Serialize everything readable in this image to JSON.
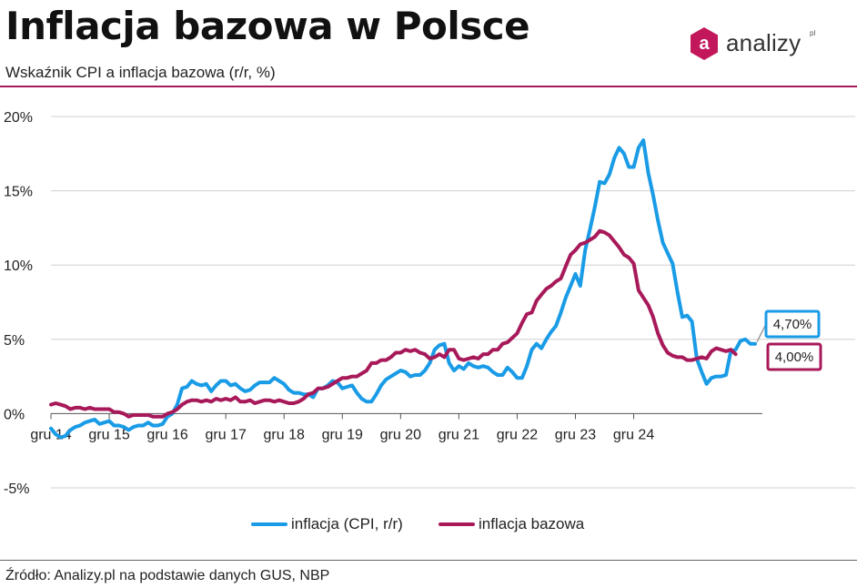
{
  "header": {
    "title": "Inflacja bazowa w Polsce",
    "subtitle": "Wskaźnik CPI a inflacja bazowa (r/r, %)"
  },
  "brand": {
    "name": "analizy",
    "sup": "pl",
    "mark_letter": "a",
    "color": "#c2185b"
  },
  "footer": {
    "source": "Źródło: Analizy.pl na podstawie danych GUS, NBP"
  },
  "colors": {
    "cpi": "#1a9be6",
    "core": "#a8195a",
    "grid": "#d0d0d0"
  },
  "chart_data": {
    "type": "line",
    "title": "",
    "x_start": "2014-12",
    "x_end": "2024-12",
    "x_ticks": [
      "gru 14",
      "gru 15",
      "gru 16",
      "gru 17",
      "gru 18",
      "gru 19",
      "gru 20",
      "gru 21",
      "gru 22",
      "gru 23",
      "gru 24"
    ],
    "ylim": [
      -5,
      20
    ],
    "y_ticks": [
      {
        "value": 20,
        "label": "20%"
      },
      {
        "value": 15,
        "label": "15%"
      },
      {
        "value": 10,
        "label": "10%"
      },
      {
        "value": 5,
        "label": "5%"
      },
      {
        "value": 0,
        "label": "0%"
      },
      {
        "value": -5,
        "label": "-5%"
      }
    ],
    "grid": true,
    "legend_position": "bottom-center",
    "series": [
      {
        "name": "inflacja (CPI, r/r)",
        "key": "cpi",
        "values": [
          -1.0,
          -1.4,
          -1.6,
          -1.5,
          -1.1,
          -0.9,
          -0.8,
          -0.6,
          -0.5,
          -0.4,
          -0.7,
          -0.6,
          -0.5,
          -0.8,
          -0.8,
          -0.9,
          -1.1,
          -0.9,
          -0.8,
          -0.8,
          -0.6,
          -0.8,
          -0.8,
          -0.7,
          -0.2,
          0.0,
          0.6,
          1.7,
          1.8,
          2.2,
          2.0,
          1.9,
          2.0,
          1.5,
          1.9,
          2.2,
          2.2,
          1.9,
          2.0,
          1.7,
          1.5,
          1.6,
          1.9,
          2.1,
          2.1,
          2.1,
          2.4,
          2.2,
          2.0,
          1.6,
          1.4,
          1.4,
          1.3,
          1.3,
          1.1,
          1.7,
          1.7,
          1.9,
          2.2,
          2.1,
          1.7,
          1.8,
          1.9,
          1.4,
          1.0,
          0.8,
          0.8,
          1.3,
          1.9,
          2.3,
          2.5,
          2.7,
          2.9,
          2.8,
          2.5,
          2.6,
          2.6,
          2.9,
          3.4,
          4.3,
          4.6,
          4.7,
          3.4,
          2.9,
          3.2,
          3.0,
          3.4,
          3.2,
          3.1,
          3.2,
          3.1,
          2.8,
          2.6,
          2.6,
          3.1,
          2.8,
          2.4,
          2.4,
          3.2,
          4.3,
          4.7,
          4.4,
          5.0,
          5.5,
          5.9,
          6.8,
          7.8,
          8.6,
          9.4,
          8.6,
          11.0,
          12.4,
          13.9,
          15.6,
          15.5,
          16.1,
          17.2,
          17.9,
          17.5,
          16.6,
          16.6,
          17.9,
          18.4,
          16.2,
          14.7,
          13.0,
          11.5,
          10.8,
          10.1,
          8.2,
          6.5,
          6.6,
          6.2,
          3.7,
          2.8,
          2.0,
          2.4,
          2.5,
          2.5,
          2.6,
          4.2,
          4.3,
          4.9,
          5.0,
          4.7,
          4.7
        ],
        "last_label": "4,70%"
      },
      {
        "name": "inflacja bazowa",
        "key": "core",
        "values": [
          0.6,
          0.7,
          0.6,
          0.5,
          0.3,
          0.4,
          0.4,
          0.3,
          0.4,
          0.3,
          0.3,
          0.3,
          0.3,
          0.1,
          0.1,
          0.0,
          -0.2,
          -0.1,
          -0.1,
          -0.1,
          -0.1,
          -0.2,
          -0.2,
          -0.2,
          0.0,
          0.1,
          0.3,
          0.6,
          0.8,
          0.9,
          0.9,
          0.8,
          0.9,
          0.8,
          1.0,
          0.9,
          1.0,
          0.9,
          1.1,
          0.8,
          0.8,
          0.9,
          0.7,
          0.8,
          0.9,
          0.9,
          0.8,
          0.9,
          0.8,
          0.7,
          0.7,
          0.8,
          1.0,
          1.3,
          1.4,
          1.7,
          1.7,
          1.8,
          2.0,
          2.2,
          2.4,
          2.4,
          2.5,
          2.5,
          2.7,
          2.9,
          3.4,
          3.4,
          3.6,
          3.6,
          3.8,
          4.1,
          4.1,
          4.3,
          4.2,
          4.3,
          4.1,
          4.0,
          3.7,
          3.8,
          4.0,
          3.8,
          4.3,
          4.3,
          3.7,
          3.6,
          3.7,
          3.8,
          3.7,
          4.0,
          4.0,
          4.3,
          4.3,
          4.7,
          4.8,
          5.1,
          5.4,
          6.1,
          6.7,
          6.8,
          7.6,
          8.0,
          8.4,
          8.6,
          8.9,
          9.1,
          9.9,
          10.7,
          11.0,
          11.4,
          11.5,
          11.7,
          11.9,
          12.3,
          12.2,
          12.0,
          11.6,
          11.2,
          10.7,
          10.5,
          10.1,
          8.3,
          7.8,
          7.3,
          6.5,
          5.4,
          4.6,
          4.1,
          3.9,
          3.8,
          3.8,
          3.6,
          3.6,
          3.7,
          3.8,
          3.7,
          4.2,
          4.4,
          4.3,
          4.2,
          4.3,
          4.0
        ],
        "last_label": "4,00%"
      }
    ]
  }
}
